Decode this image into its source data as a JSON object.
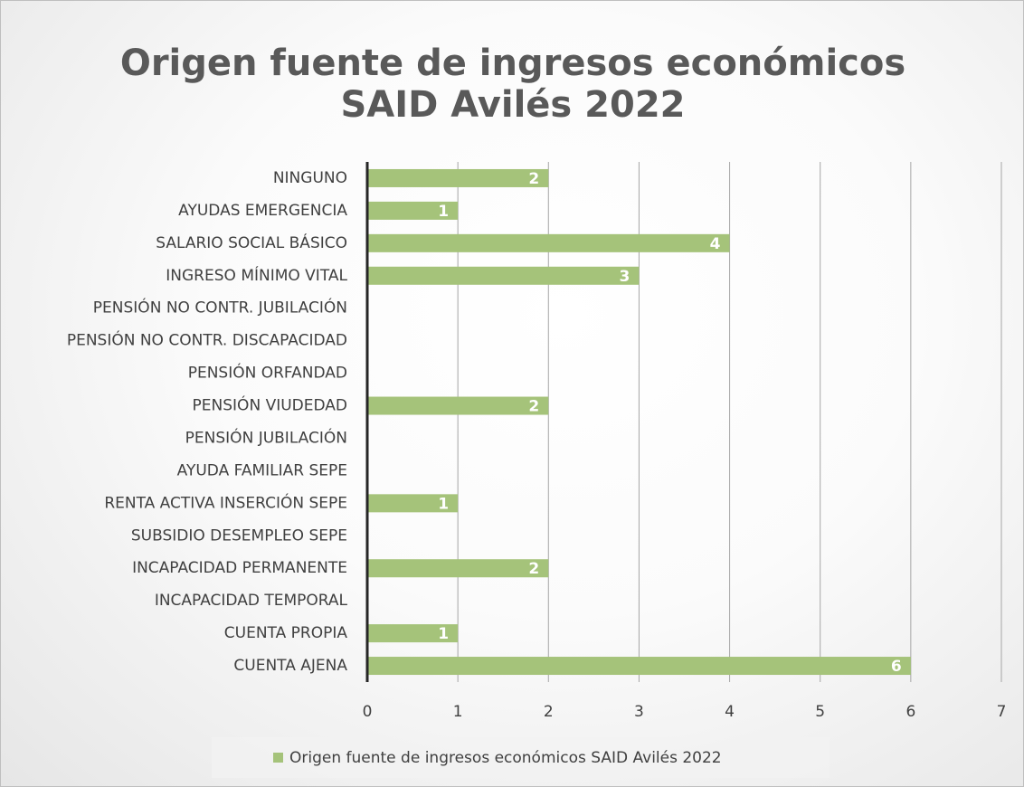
{
  "chart_data": {
    "type": "bar",
    "orientation": "horizontal",
    "title": "Origen fuente de ingresos económicos SAID Avilés 2022",
    "categories": [
      "NINGUNO",
      "AYUDAS EMERGENCIA",
      "SALARIO SOCIAL BÁSICO",
      "INGRESO MÍNIMO VITAL",
      "PENSIÓN NO CONTR. JUBILACIÓN",
      "PENSIÓN NO CONTR. DISCAPACIDAD",
      "PENSIÓN ORFANDAD",
      "PENSIÓN VIUDEDAD",
      "PENSIÓN JUBILACIÓN",
      "AYUDA FAMILIAR SEPE",
      "RENTA ACTIVA INSERCIÓN SEPE",
      "SUBSIDIO DESEMPLEO SEPE",
      "INCAPACIDAD PERMANENTE",
      "INCAPACIDAD TEMPORAL",
      "CUENTA PROPIA",
      "CUENTA AJENA"
    ],
    "series": [
      {
        "name": "Origen fuente de ingresos económicos SAID Avilés 2022",
        "color": "#a5c37a",
        "values": [
          2,
          1,
          4,
          3,
          null,
          null,
          null,
          2,
          null,
          null,
          1,
          null,
          2,
          null,
          1,
          6
        ]
      }
    ],
    "xlim": [
      0,
      7
    ],
    "xticks": [
      0,
      1,
      2,
      3,
      4,
      5,
      6,
      7
    ],
    "grid": true,
    "legend": "bottom"
  }
}
